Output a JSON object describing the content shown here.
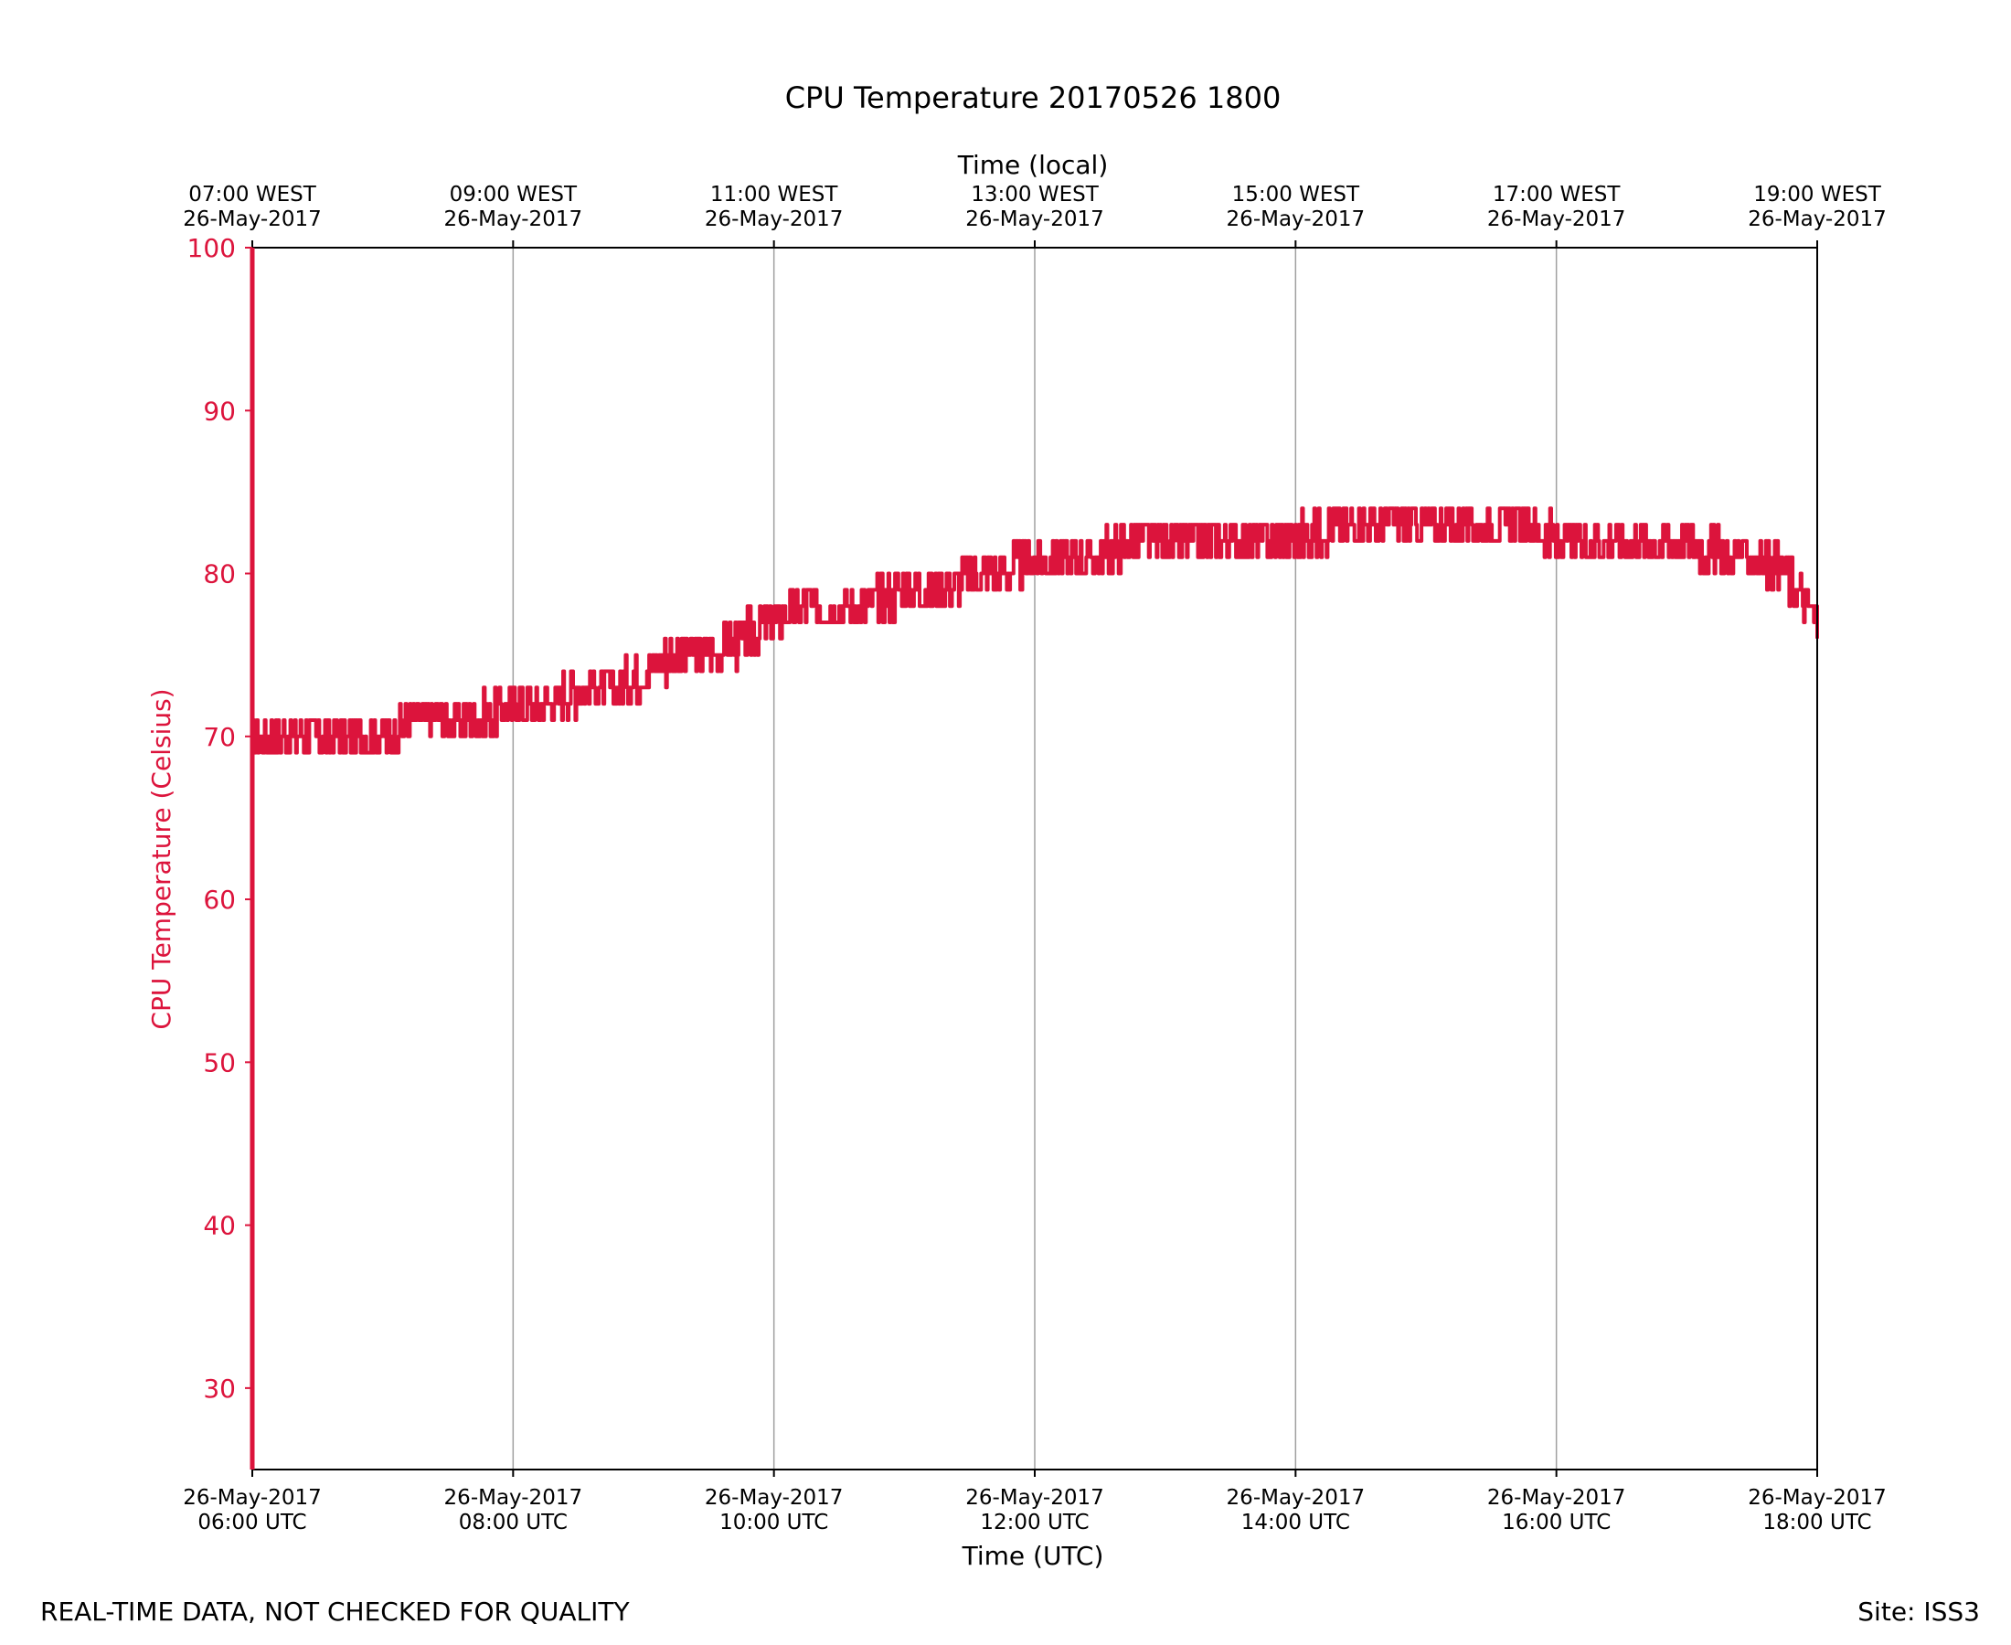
{
  "chart_data": {
    "type": "line",
    "title": "CPU Temperature 20170526 1800",
    "xlabel_bottom": "Time (UTC)",
    "xlabel_top": "Time (local)",
    "ylabel": "CPU Temperature (Celsius)",
    "ylim": [
      25,
      100
    ],
    "yticks": [
      30,
      40,
      50,
      60,
      70,
      80,
      90,
      100
    ],
    "xlim_hours_utc": [
      6,
      18
    ],
    "xticks_hours_utc": [
      6,
      8,
      10,
      12,
      14,
      16,
      18
    ],
    "bottom_tick_labels": [
      {
        "date": "26-May-2017",
        "time": "06:00 UTC"
      },
      {
        "date": "26-May-2017",
        "time": "08:00 UTC"
      },
      {
        "date": "26-May-2017",
        "time": "10:00 UTC"
      },
      {
        "date": "26-May-2017",
        "time": "12:00 UTC"
      },
      {
        "date": "26-May-2017",
        "time": "14:00 UTC"
      },
      {
        "date": "26-May-2017",
        "time": "16:00 UTC"
      },
      {
        "date": "26-May-2017",
        "time": "18:00 UTC"
      }
    ],
    "top_tick_labels": [
      {
        "time": "07:00 WEST",
        "date": "26-May-2017"
      },
      {
        "time": "09:00 WEST",
        "date": "26-May-2017"
      },
      {
        "time": "11:00 WEST",
        "date": "26-May-2017"
      },
      {
        "time": "13:00 WEST",
        "date": "26-May-2017"
      },
      {
        "time": "15:00 WEST",
        "date": "26-May-2017"
      },
      {
        "time": "17:00 WEST",
        "date": "26-May-2017"
      },
      {
        "time": "19:00 WEST",
        "date": "26-May-2017"
      }
    ],
    "grid": "vertical",
    "line_color": "#dc143c",
    "series": [
      {
        "name": "CPU Temperature",
        "x_hours_utc": [
          6.0,
          6.25,
          6.5,
          6.75,
          7.0,
          7.25,
          7.5,
          7.75,
          8.0,
          8.25,
          8.5,
          8.75,
          9.0,
          9.25,
          9.5,
          9.75,
          10.0,
          10.25,
          10.5,
          10.75,
          11.0,
          11.25,
          11.5,
          11.75,
          12.0,
          12.25,
          12.5,
          12.75,
          13.0,
          13.25,
          13.5,
          13.75,
          14.0,
          14.25,
          14.5,
          14.75,
          15.0,
          15.25,
          15.5,
          15.75,
          16.0,
          16.25,
          16.5,
          16.75,
          17.0,
          17.25,
          17.5,
          17.75,
          18.0
        ],
        "values": [
          70,
          70,
          70,
          70,
          70,
          71,
          71,
          71,
          72,
          72,
          73,
          73,
          74,
          75,
          75,
          76,
          77,
          78,
          78,
          78,
          79,
          79,
          80,
          80,
          81,
          81,
          81,
          82,
          82,
          82,
          82,
          82,
          82,
          83,
          83,
          83,
          83,
          83,
          83,
          83,
          82,
          82,
          82,
          82,
          82,
          81,
          81,
          80,
          77
        ],
        "noise_amplitude": 1.5
      }
    ]
  },
  "footer": {
    "left_note": "REAL-TIME DATA, NOT CHECKED FOR QUALITY",
    "site": "Site: ISS3"
  },
  "colors": {
    "accent": "#dc143c",
    "axis": "#000000",
    "grid": "#a0a0a0"
  }
}
